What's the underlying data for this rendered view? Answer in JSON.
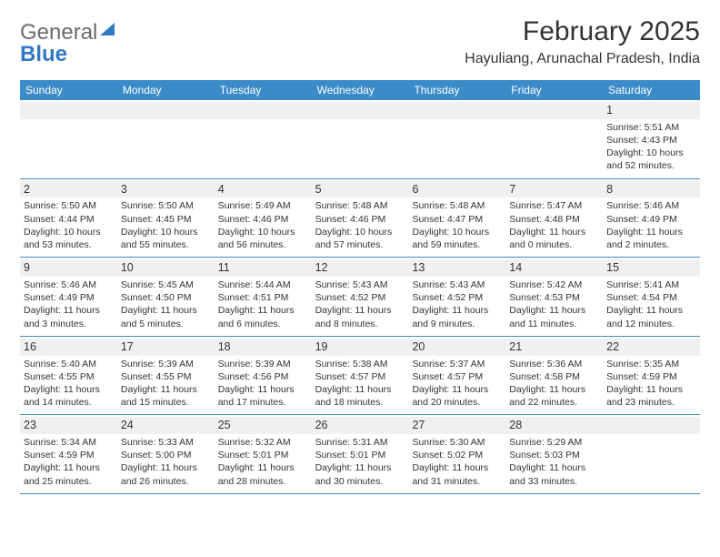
{
  "brand": {
    "text1": "General",
    "text2": "Blue"
  },
  "title": "February 2025",
  "location": "Hayuliang, Arunachal Pradesh, India",
  "colors": {
    "header_bg": "#3b8bc9",
    "header_text": "#ffffff",
    "daynum_bg": "#eff0f1",
    "body_text": "#333333",
    "border": "#3b8bc9",
    "logo_gray": "#6b6b6b",
    "logo_blue": "#2f7ac0",
    "page_bg": "#ffffff"
  },
  "weekdays": [
    "Sunday",
    "Monday",
    "Tuesday",
    "Wednesday",
    "Thursday",
    "Friday",
    "Saturday"
  ],
  "weeks": [
    [
      null,
      null,
      null,
      null,
      null,
      null,
      {
        "n": "1",
        "sr": "Sunrise: 5:51 AM",
        "ss": "Sunset: 4:43 PM",
        "d1": "Daylight: 10 hours",
        "d2": "and 52 minutes."
      }
    ],
    [
      {
        "n": "2",
        "sr": "Sunrise: 5:50 AM",
        "ss": "Sunset: 4:44 PM",
        "d1": "Daylight: 10 hours",
        "d2": "and 53 minutes."
      },
      {
        "n": "3",
        "sr": "Sunrise: 5:50 AM",
        "ss": "Sunset: 4:45 PM",
        "d1": "Daylight: 10 hours",
        "d2": "and 55 minutes."
      },
      {
        "n": "4",
        "sr": "Sunrise: 5:49 AM",
        "ss": "Sunset: 4:46 PM",
        "d1": "Daylight: 10 hours",
        "d2": "and 56 minutes."
      },
      {
        "n": "5",
        "sr": "Sunrise: 5:48 AM",
        "ss": "Sunset: 4:46 PM",
        "d1": "Daylight: 10 hours",
        "d2": "and 57 minutes."
      },
      {
        "n": "6",
        "sr": "Sunrise: 5:48 AM",
        "ss": "Sunset: 4:47 PM",
        "d1": "Daylight: 10 hours",
        "d2": "and 59 minutes."
      },
      {
        "n": "7",
        "sr": "Sunrise: 5:47 AM",
        "ss": "Sunset: 4:48 PM",
        "d1": "Daylight: 11 hours",
        "d2": "and 0 minutes."
      },
      {
        "n": "8",
        "sr": "Sunrise: 5:46 AM",
        "ss": "Sunset: 4:49 PM",
        "d1": "Daylight: 11 hours",
        "d2": "and 2 minutes."
      }
    ],
    [
      {
        "n": "9",
        "sr": "Sunrise: 5:46 AM",
        "ss": "Sunset: 4:49 PM",
        "d1": "Daylight: 11 hours",
        "d2": "and 3 minutes."
      },
      {
        "n": "10",
        "sr": "Sunrise: 5:45 AM",
        "ss": "Sunset: 4:50 PM",
        "d1": "Daylight: 11 hours",
        "d2": "and 5 minutes."
      },
      {
        "n": "11",
        "sr": "Sunrise: 5:44 AM",
        "ss": "Sunset: 4:51 PM",
        "d1": "Daylight: 11 hours",
        "d2": "and 6 minutes."
      },
      {
        "n": "12",
        "sr": "Sunrise: 5:43 AM",
        "ss": "Sunset: 4:52 PM",
        "d1": "Daylight: 11 hours",
        "d2": "and 8 minutes."
      },
      {
        "n": "13",
        "sr": "Sunrise: 5:43 AM",
        "ss": "Sunset: 4:52 PM",
        "d1": "Daylight: 11 hours",
        "d2": "and 9 minutes."
      },
      {
        "n": "14",
        "sr": "Sunrise: 5:42 AM",
        "ss": "Sunset: 4:53 PM",
        "d1": "Daylight: 11 hours",
        "d2": "and 11 minutes."
      },
      {
        "n": "15",
        "sr": "Sunrise: 5:41 AM",
        "ss": "Sunset: 4:54 PM",
        "d1": "Daylight: 11 hours",
        "d2": "and 12 minutes."
      }
    ],
    [
      {
        "n": "16",
        "sr": "Sunrise: 5:40 AM",
        "ss": "Sunset: 4:55 PM",
        "d1": "Daylight: 11 hours",
        "d2": "and 14 minutes."
      },
      {
        "n": "17",
        "sr": "Sunrise: 5:39 AM",
        "ss": "Sunset: 4:55 PM",
        "d1": "Daylight: 11 hours",
        "d2": "and 15 minutes."
      },
      {
        "n": "18",
        "sr": "Sunrise: 5:39 AM",
        "ss": "Sunset: 4:56 PM",
        "d1": "Daylight: 11 hours",
        "d2": "and 17 minutes."
      },
      {
        "n": "19",
        "sr": "Sunrise: 5:38 AM",
        "ss": "Sunset: 4:57 PM",
        "d1": "Daylight: 11 hours",
        "d2": "and 18 minutes."
      },
      {
        "n": "20",
        "sr": "Sunrise: 5:37 AM",
        "ss": "Sunset: 4:57 PM",
        "d1": "Daylight: 11 hours",
        "d2": "and 20 minutes."
      },
      {
        "n": "21",
        "sr": "Sunrise: 5:36 AM",
        "ss": "Sunset: 4:58 PM",
        "d1": "Daylight: 11 hours",
        "d2": "and 22 minutes."
      },
      {
        "n": "22",
        "sr": "Sunrise: 5:35 AM",
        "ss": "Sunset: 4:59 PM",
        "d1": "Daylight: 11 hours",
        "d2": "and 23 minutes."
      }
    ],
    [
      {
        "n": "23",
        "sr": "Sunrise: 5:34 AM",
        "ss": "Sunset: 4:59 PM",
        "d1": "Daylight: 11 hours",
        "d2": "and 25 minutes."
      },
      {
        "n": "24",
        "sr": "Sunrise: 5:33 AM",
        "ss": "Sunset: 5:00 PM",
        "d1": "Daylight: 11 hours",
        "d2": "and 26 minutes."
      },
      {
        "n": "25",
        "sr": "Sunrise: 5:32 AM",
        "ss": "Sunset: 5:01 PM",
        "d1": "Daylight: 11 hours",
        "d2": "and 28 minutes."
      },
      {
        "n": "26",
        "sr": "Sunrise: 5:31 AM",
        "ss": "Sunset: 5:01 PM",
        "d1": "Daylight: 11 hours",
        "d2": "and 30 minutes."
      },
      {
        "n": "27",
        "sr": "Sunrise: 5:30 AM",
        "ss": "Sunset: 5:02 PM",
        "d1": "Daylight: 11 hours",
        "d2": "and 31 minutes."
      },
      {
        "n": "28",
        "sr": "Sunrise: 5:29 AM",
        "ss": "Sunset: 5:03 PM",
        "d1": "Daylight: 11 hours",
        "d2": "and 33 minutes."
      },
      null
    ]
  ]
}
